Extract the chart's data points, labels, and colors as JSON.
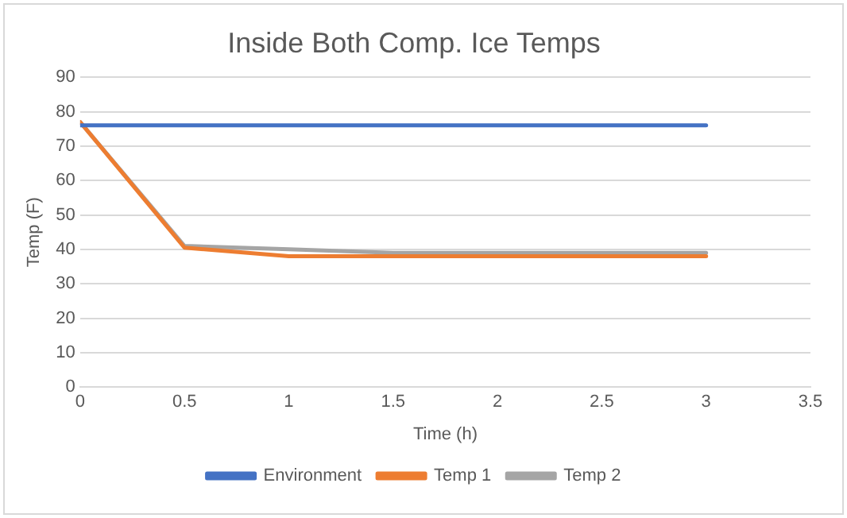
{
  "chart_data": {
    "type": "line",
    "title": "Inside Both Comp. Ice Temps",
    "xlabel": "Time (h)",
    "ylabel": "Temp (F)",
    "x": [
      0,
      0.5,
      1,
      1.5,
      2,
      2.5,
      3
    ],
    "series": [
      {
        "name": "Environment",
        "color": "#4472c4",
        "values": [
          76,
          76,
          76,
          76,
          76,
          76,
          76
        ]
      },
      {
        "name": "Temp 1",
        "color": "#ed7d31",
        "values": [
          77,
          40.5,
          38,
          38,
          38,
          38,
          38
        ]
      },
      {
        "name": "Temp 2",
        "color": "#a5a5a5",
        "values": [
          77,
          41,
          40,
          39,
          39,
          39,
          39
        ]
      }
    ],
    "xlim": [
      0,
      3.5
    ],
    "xticks": [
      0,
      0.5,
      1,
      1.5,
      2,
      2.5,
      3,
      3.5
    ],
    "ylim": [
      0,
      90
    ],
    "yticks": [
      0,
      10,
      20,
      30,
      40,
      50,
      60,
      70,
      80,
      90
    ],
    "grid": "y",
    "legend": "bottom",
    "marker": "none",
    "line_style": "solid"
  }
}
